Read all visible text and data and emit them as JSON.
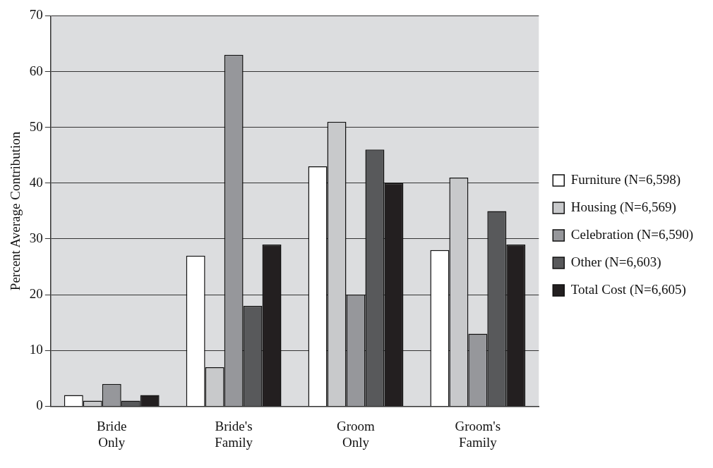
{
  "chart_data": {
    "type": "bar",
    "ylabel": "Percent Average Contribution",
    "categories": [
      "Bride Only",
      "Bride's Family",
      "Groom Only",
      "Groom's Family"
    ],
    "series": [
      {
        "name": "Furniture (N=6,598)",
        "color": "#ffffff",
        "values": [
          2,
          27,
          43,
          28
        ]
      },
      {
        "name": "Housing (N=6,569)",
        "color": "#c8c9cb",
        "values": [
          1,
          7,
          51,
          41
        ]
      },
      {
        "name": "Celebration (N=6,590)",
        "color": "#96979b",
        "values": [
          4,
          63,
          20,
          13
        ]
      },
      {
        "name": "Other (N=6,603)",
        "color": "#58595b",
        "values": [
          1,
          18,
          46,
          35
        ]
      },
      {
        "name": "Total Cost (N=6,605)",
        "color": "#231f20",
        "values": [
          2,
          29,
          40,
          29
        ]
      }
    ],
    "ylim": [
      0,
      70
    ],
    "yticks": [
      0,
      10,
      20,
      30,
      40,
      50,
      60,
      70
    ],
    "grid": "y",
    "legend": "right"
  }
}
